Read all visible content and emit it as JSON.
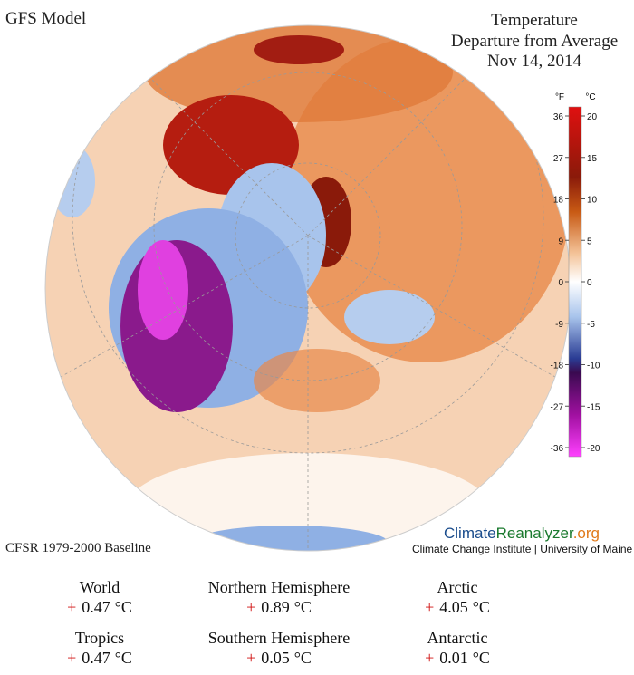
{
  "header": {
    "model": "GFS Model",
    "title_lines": [
      "Temperature",
      "Departure from Average",
      "Nov 14, 2014"
    ]
  },
  "colorbar": {
    "f_unit": "°F",
    "c_unit": "°C",
    "f_range": [
      -36,
      36
    ],
    "f_ticks": [
      36,
      27,
      18,
      9,
      0,
      -9,
      -18,
      -27,
      -36
    ],
    "c_range": [
      -20,
      20
    ],
    "c_ticks": [
      20,
      15,
      10,
      5,
      0,
      -5,
      -10,
      -15,
      -20
    ]
  },
  "baseline": "CFSR 1979-2000 Baseline",
  "brand": {
    "climate": "Climate",
    "reanalyzer": "Reanalyzer",
    "org": ".org",
    "institute": "Climate Change Institute | University of Maine"
  },
  "stats": [
    {
      "region": "World",
      "sign": "+",
      "value": 0.47,
      "unit": "°C"
    },
    {
      "region": "Northern Hemisphere",
      "sign": "+",
      "value": 0.89,
      "unit": "°C"
    },
    {
      "region": "Arctic",
      "sign": "+",
      "value": 4.05,
      "unit": "°C"
    },
    {
      "region": "Tropics",
      "sign": "+",
      "value": 0.47,
      "unit": "°C"
    },
    {
      "region": "Southern Hemisphere",
      "sign": "+",
      "value": 0.05,
      "unit": "°C"
    },
    {
      "region": "Antarctic",
      "sign": "+",
      "value": 0.01,
      "unit": "°C"
    }
  ]
}
